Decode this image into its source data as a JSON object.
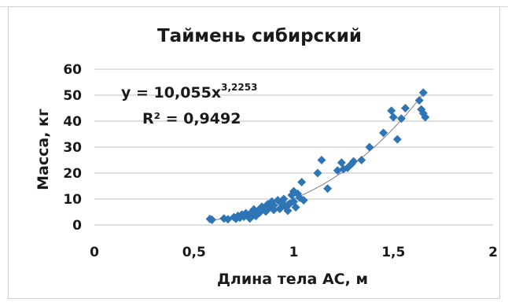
{
  "chart_data": {
    "type": "scatter",
    "title": "Таймень сибирский",
    "xlabel": "Длина тела АС,  м",
    "ylabel": "Масса, кг",
    "xlim": [
      0,
      2
    ],
    "ylim": [
      0,
      60
    ],
    "x_ticks": [
      "0",
      "0,5",
      "1",
      "1,5",
      "2"
    ],
    "y_ticks": [
      "0",
      "10",
      "20",
      "30",
      "40",
      "50",
      "60"
    ],
    "grid": "horizontal",
    "marker_color": "#2e75b6",
    "trendline_color": "#7f7f7f",
    "equation": {
      "main": "y = 10,055x",
      "exponent": "3,2253",
      "r2_label": "R² = 0,9492"
    },
    "trendline": {
      "type": "power",
      "a": 10.055,
      "b": 3.2253
    },
    "points": [
      [
        0.58,
        2.3
      ],
      [
        0.59,
        2.0
      ],
      [
        0.65,
        2.5
      ],
      [
        0.67,
        2.2
      ],
      [
        0.7,
        3.0
      ],
      [
        0.71,
        2.4
      ],
      [
        0.72,
        3.5
      ],
      [
        0.73,
        2.8
      ],
      [
        0.74,
        4.0
      ],
      [
        0.75,
        3.2
      ],
      [
        0.76,
        4.5
      ],
      [
        0.77,
        3.8
      ],
      [
        0.78,
        2.5
      ],
      [
        0.79,
        5.0
      ],
      [
        0.8,
        4.2
      ],
      [
        0.8,
        6.0
      ],
      [
        0.81,
        3.5
      ],
      [
        0.82,
        5.5
      ],
      [
        0.83,
        4.8
      ],
      [
        0.84,
        7.0
      ],
      [
        0.85,
        6.5
      ],
      [
        0.86,
        5.2
      ],
      [
        0.87,
        8.0
      ],
      [
        0.88,
        6.8
      ],
      [
        0.89,
        9.0
      ],
      [
        0.9,
        7.5
      ],
      [
        0.9,
        5.8
      ],
      [
        0.92,
        9.5
      ],
      [
        0.93,
        6.2
      ],
      [
        0.94,
        8.5
      ],
      [
        0.95,
        10.0
      ],
      [
        0.96,
        7.0
      ],
      [
        0.97,
        5.5
      ],
      [
        0.98,
        8.2
      ],
      [
        0.99,
        11.5
      ],
      [
        1.0,
        13.0
      ],
      [
        1.0,
        9.0
      ],
      [
        1.01,
        6.8
      ],
      [
        1.02,
        12.0
      ],
      [
        1.03,
        10.5
      ],
      [
        1.04,
        16.5
      ],
      [
        1.05,
        9.5
      ],
      [
        1.12,
        20.0
      ],
      [
        1.14,
        25.0
      ],
      [
        1.17,
        14.0
      ],
      [
        1.22,
        21.0
      ],
      [
        1.24,
        24.0
      ],
      [
        1.25,
        21.5
      ],
      [
        1.27,
        22.0
      ],
      [
        1.29,
        23.5
      ],
      [
        1.3,
        24.5
      ],
      [
        1.34,
        25.0
      ],
      [
        1.38,
        30.0
      ],
      [
        1.45,
        35.5
      ],
      [
        1.49,
        44.0
      ],
      [
        1.5,
        41.5
      ],
      [
        1.52,
        33.0
      ],
      [
        1.54,
        41.0
      ],
      [
        1.56,
        45.0
      ],
      [
        1.63,
        48.0
      ],
      [
        1.64,
        44.5
      ],
      [
        1.65,
        51.0
      ],
      [
        1.65,
        43.0
      ],
      [
        1.66,
        41.5
      ]
    ]
  }
}
